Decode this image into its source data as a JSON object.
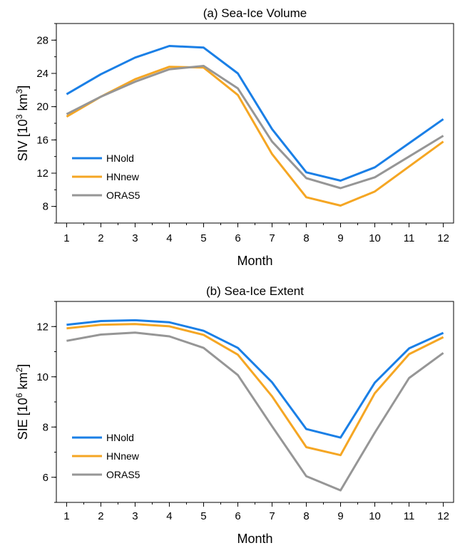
{
  "chart_data": [
    {
      "type": "line",
      "title": "(a)  Sea-Ice Volume",
      "xlabel": "Month",
      "ylabel_prefix": "SIV  [10",
      "ylabel_sup1": "3",
      "ylabel_mid": " km",
      "ylabel_sup2": "3",
      "ylabel_suffix": "]",
      "x": [
        1,
        2,
        3,
        4,
        5,
        6,
        7,
        8,
        9,
        10,
        11,
        12
      ],
      "x_tick_labels": [
        "1",
        "2",
        "3",
        "4",
        "5",
        "6",
        "7",
        "8",
        "9",
        "10",
        "11",
        "12"
      ],
      "xlim": [
        0.7,
        12.3
      ],
      "ylim": [
        6,
        30
      ],
      "y_ticks": [
        8,
        12,
        16,
        20,
        24,
        28
      ],
      "y_tick_labels": [
        "8",
        "12",
        "16",
        "20",
        "24",
        "28"
      ],
      "y_minor_step": 2,
      "legend_position": "lower-left",
      "series": [
        {
          "name": "HNold",
          "color": "#1a7fe6",
          "values": [
            21.5,
            23.9,
            25.9,
            27.3,
            27.1,
            24.0,
            17.3,
            12.1,
            11.1,
            12.7,
            15.6,
            18.5
          ]
        },
        {
          "name": "HNnew",
          "color": "#f5a623",
          "values": [
            18.8,
            21.2,
            23.3,
            24.8,
            24.7,
            21.4,
            14.3,
            9.1,
            8.1,
            9.8,
            12.8,
            15.8
          ]
        },
        {
          "name": "ORAS5",
          "color": "#969696",
          "values": [
            19.1,
            21.2,
            23.0,
            24.5,
            24.9,
            22.2,
            15.8,
            11.4,
            10.2,
            11.5,
            14.0,
            16.5
          ]
        }
      ]
    },
    {
      "type": "line",
      "title": "(b)  Sea-Ice Extent",
      "xlabel": "Month",
      "ylabel_prefix": "SIE  [10",
      "ylabel_sup1": "6",
      "ylabel_mid": " km",
      "ylabel_sup2": "2",
      "ylabel_suffix": "]",
      "x": [
        1,
        2,
        3,
        4,
        5,
        6,
        7,
        8,
        9,
        10,
        11,
        12
      ],
      "x_tick_labels": [
        "1",
        "2",
        "3",
        "4",
        "5",
        "6",
        "7",
        "8",
        "9",
        "10",
        "11",
        "12"
      ],
      "xlim": [
        0.7,
        12.3
      ],
      "ylim": [
        5,
        13
      ],
      "y_ticks": [
        6,
        8,
        10,
        12
      ],
      "y_tick_labels": [
        "6",
        "8",
        "10",
        "12"
      ],
      "y_minor_step": 1,
      "legend_position": "lower-left",
      "series": [
        {
          "name": "HNold",
          "color": "#1a7fe6",
          "values": [
            12.07,
            12.22,
            12.25,
            12.17,
            11.83,
            11.15,
            9.78,
            7.92,
            7.58,
            9.77,
            11.13,
            11.75
          ]
        },
        {
          "name": "HNnew",
          "color": "#f5a623",
          "values": [
            11.93,
            12.07,
            12.1,
            12.01,
            11.67,
            10.88,
            9.22,
            7.2,
            6.88,
            9.35,
            10.9,
            11.58
          ]
        },
        {
          "name": "ORAS5",
          "color": "#969696",
          "values": [
            11.43,
            11.68,
            11.76,
            11.61,
            11.15,
            10.07,
            8.03,
            6.04,
            5.48,
            7.78,
            9.95,
            10.95
          ]
        }
      ]
    }
  ]
}
